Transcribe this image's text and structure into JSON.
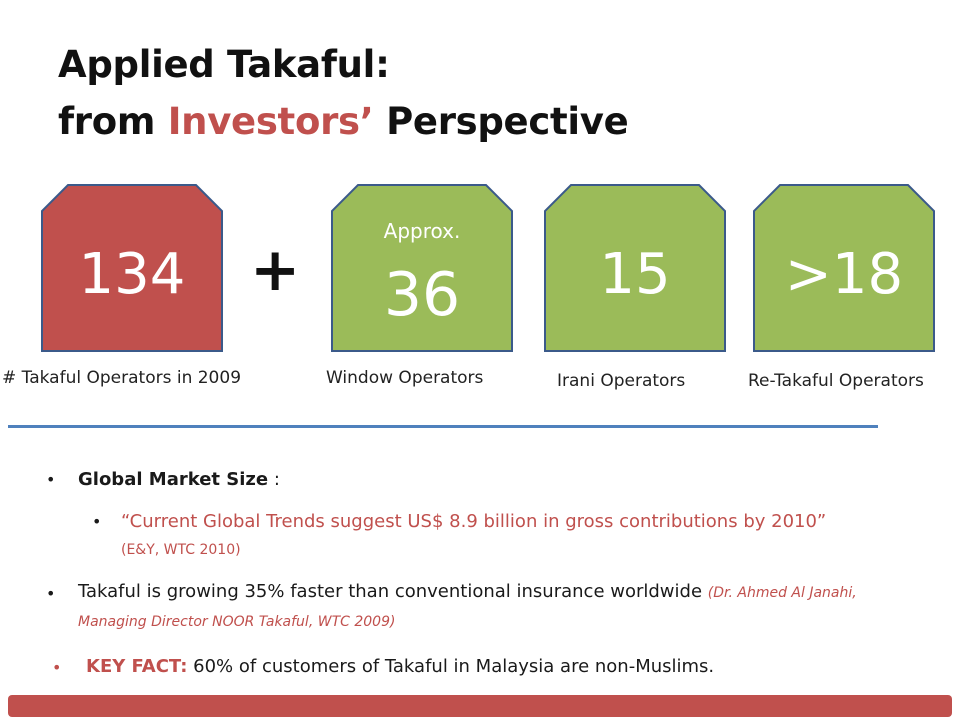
{
  "title": {
    "line1": "Applied Takaful:",
    "line2_pre": "from",
    "line2_accent": "Investors’",
    "line2_post": "Perspective"
  },
  "colors": {
    "red": "#c0504d",
    "green": "#9bbb59",
    "blue": "#4f81bd"
  },
  "cards": [
    {
      "value": "134",
      "caption": "# Takaful Operators in 2009"
    },
    {
      "prefix": "Approx.",
      "value": "36",
      "caption": "Window Operators"
    },
    {
      "value": "15",
      "caption": "Irani Operators"
    },
    {
      "value": ">18",
      "caption": "Re-Takaful Operators"
    }
  ],
  "plus": "+",
  "bullets": {
    "market_label": "Global Market Size",
    "market_colon": " :",
    "quote": "“Current Global Trends suggest US$ 8.9 billion in gross contributions by 2010”",
    "quote_src": "(E&Y, WTC 2010)",
    "growth_text": "Takaful is growing 35% faster than conventional insurance worldwide",
    "growth_src": "(Dr. Ahmed Al Janahi, Managing Director NOOR Takaful, WTC 2009)",
    "key_label": "KEY FACT:",
    "key_text": "60% of customers of Takaful in Malaysia are non-Muslims."
  }
}
